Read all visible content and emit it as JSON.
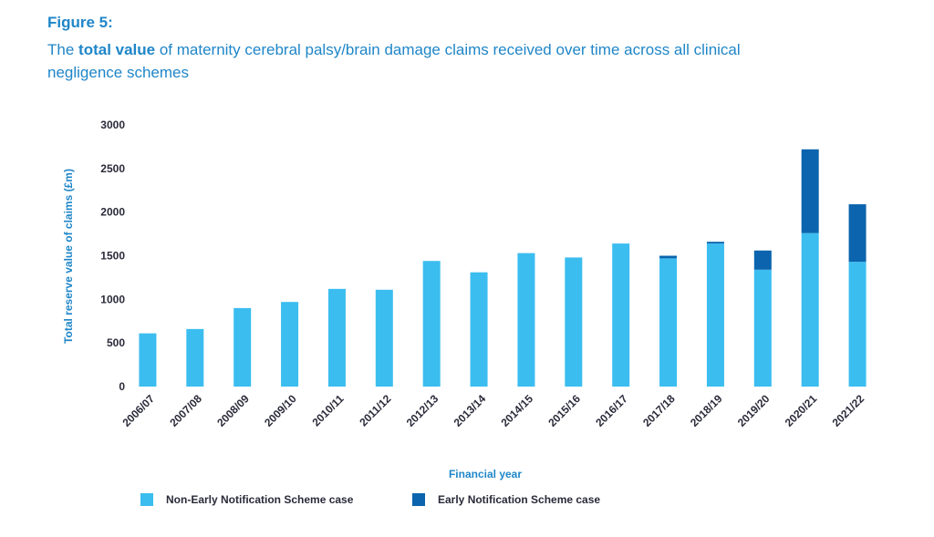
{
  "figure_label": "Figure 5:",
  "title": {
    "before": "The ",
    "bold": "total value",
    "after": " of maternity cerebral palsy/brain damage claims received over time across all clinical negligence schemes"
  },
  "colors": {
    "non_ens": "#3bbdf0",
    "ens": "#0b64ad",
    "accent": "#1f86c8"
  },
  "chart_data": {
    "type": "bar",
    "stacked": true,
    "categories": [
      "2006/07",
      "2007/08",
      "2008/09",
      "2009/10",
      "2010/11",
      "2011/12",
      "2012/13",
      "2013/14",
      "2014/15",
      "2015/16",
      "2016/17",
      "2017/18",
      "2018/19",
      "2019/20",
      "2020/21",
      "2021/22"
    ],
    "series": [
      {
        "name": "Non-Early Notification Scheme case",
        "values": [
          610,
          660,
          900,
          970,
          1120,
          1110,
          1440,
          1310,
          1530,
          1480,
          1640,
          1470,
          1640,
          1340,
          1760,
          1430
        ]
      },
      {
        "name": "Early Notification Scheme case",
        "values": [
          0,
          0,
          0,
          0,
          0,
          0,
          0,
          0,
          0,
          0,
          0,
          30,
          20,
          220,
          960,
          660
        ]
      }
    ],
    "ylim": [
      0,
      3000
    ],
    "yticks": [
      "0",
      "500",
      "1000",
      "1500",
      "2000",
      "2500",
      "3000"
    ],
    "xlabel": "Financial year",
    "ylabel": "Total reserve value of claims (£m)",
    "grid": false,
    "legend_position": "bottom"
  }
}
